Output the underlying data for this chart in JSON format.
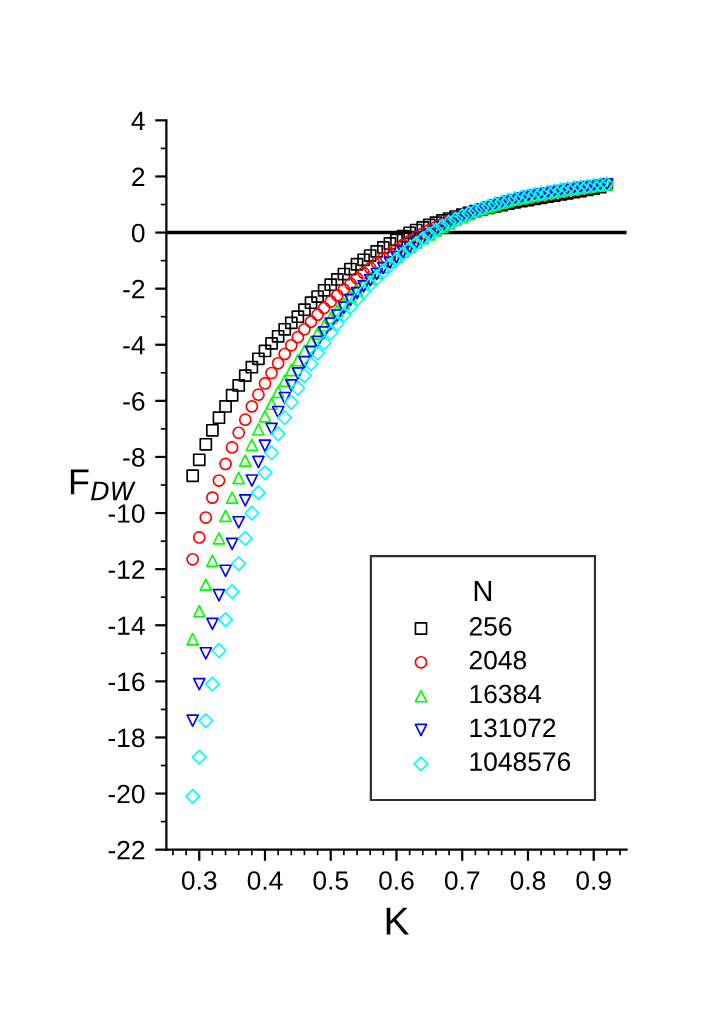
{
  "chart_data": {
    "type": "scatter",
    "xlabel": "K",
    "ylabel": "F$_{DW}$",
    "legend_title": "N",
    "legend": "bottom right",
    "grid": false,
    "x": [
      0.29,
      0.3,
      0.31,
      0.32,
      0.33,
      0.34,
      0.35,
      0.36,
      0.37,
      0.38,
      0.39,
      0.4,
      0.41,
      0.42,
      0.43,
      0.44,
      0.45,
      0.46,
      0.47,
      0.48,
      0.49,
      0.5,
      0.51,
      0.52,
      0.53,
      0.54,
      0.55,
      0.56,
      0.57,
      0.58,
      0.59,
      0.6,
      0.61,
      0.62,
      0.63,
      0.64,
      0.65,
      0.66,
      0.67,
      0.68,
      0.69,
      0.7,
      0.71,
      0.72,
      0.73,
      0.74,
      0.75,
      0.76,
      0.77,
      0.78,
      0.79,
      0.8,
      0.81,
      0.82,
      0.83,
      0.84,
      0.85,
      0.86,
      0.87,
      0.88,
      0.89,
      0.9,
      0.91,
      0.92
    ],
    "series": [
      {
        "name": "256",
        "color": "#000000",
        "marker": "square",
        "values": [
          -8.67,
          -8.1,
          -7.55,
          -7.05,
          -6.6,
          -6.2,
          -5.8,
          -5.45,
          -5.1,
          -4.8,
          -4.5,
          -4.22,
          -3.95,
          -3.7,
          -3.45,
          -3.22,
          -3.0,
          -2.75,
          -2.5,
          -2.28,
          -2.06,
          -1.86,
          -1.67,
          -1.48,
          -1.3,
          -1.13,
          -0.97,
          -0.82,
          -0.67,
          -0.53,
          -0.39,
          -0.26,
          -0.13,
          -0.01,
          0.09,
          0.18,
          0.27,
          0.35,
          0.43,
          0.5,
          0.57,
          0.64,
          0.7,
          0.76,
          0.82,
          0.88,
          0.93,
          0.98,
          1.03,
          1.08,
          1.12,
          1.16,
          1.2,
          1.24,
          1.28,
          1.32,
          1.36,
          1.4,
          1.44,
          1.48,
          1.52,
          1.57,
          1.62,
          1.72
        ]
      },
      {
        "name": "2048",
        "color": "#ff0000",
        "marker": "circle",
        "values": [
          -11.65,
          -10.87,
          -10.16,
          -9.45,
          -8.84,
          -8.25,
          -7.66,
          -7.14,
          -6.67,
          -6.2,
          -5.78,
          -5.38,
          -5.01,
          -4.66,
          -4.33,
          -4.02,
          -3.73,
          -3.45,
          -3.18,
          -2.93,
          -2.69,
          -2.46,
          -2.24,
          -2.03,
          -1.83,
          -1.63,
          -1.44,
          -1.26,
          -1.08,
          -0.91,
          -0.75,
          -0.59,
          -0.44,
          -0.3,
          -0.16,
          -0.03,
          0.09,
          0.2,
          0.31,
          0.41,
          0.51,
          0.6,
          0.68,
          0.76,
          0.84,
          0.91,
          0.97,
          1.03,
          1.09,
          1.14,
          1.19,
          1.24,
          1.29,
          1.33,
          1.37,
          1.41,
          1.45,
          1.49,
          1.53,
          1.56,
          1.6,
          1.64,
          1.68,
          1.72
        ]
      },
      {
        "name": "16384",
        "color": "#00ff00",
        "marker": "triangle",
        "values": [
          -14.5,
          -13.5,
          -12.55,
          -11.7,
          -10.9,
          -10.1,
          -9.45,
          -8.75,
          -8.13,
          -7.57,
          -7.02,
          -6.55,
          -6.1,
          -5.68,
          -5.28,
          -4.9,
          -4.55,
          -4.22,
          -3.9,
          -3.6,
          -3.31,
          -3.04,
          -2.78,
          -2.53,
          -2.29,
          -2.06,
          -1.84,
          -1.63,
          -1.43,
          -1.23,
          -1.04,
          -0.86,
          -0.68,
          -0.51,
          -0.35,
          -0.2,
          -0.06,
          0.08,
          0.21,
          0.33,
          0.45,
          0.56,
          0.66,
          0.75,
          0.84,
          0.92,
          0.99,
          1.06,
          1.12,
          1.18,
          1.23,
          1.28,
          1.33,
          1.37,
          1.41,
          1.45,
          1.49,
          1.53,
          1.56,
          1.6,
          1.63,
          1.66,
          1.69,
          1.72
        ]
      },
      {
        "name": "131072",
        "color": "#0000ff",
        "marker": "triangle_down",
        "values": [
          -17.4,
          -16.1,
          -15.0,
          -13.95,
          -12.93,
          -12.06,
          -11.1,
          -10.33,
          -9.55,
          -8.84,
          -8.18,
          -7.6,
          -7.0,
          -6.4,
          -5.9,
          -5.45,
          -5.02,
          -4.62,
          -4.25,
          -3.9,
          -3.56,
          -3.25,
          -2.96,
          -2.68,
          -2.41,
          -2.16,
          -1.92,
          -1.7,
          -1.48,
          -1.27,
          -1.07,
          -0.88,
          -0.7,
          -0.53,
          -0.37,
          -0.22,
          -0.08,
          0.06,
          0.19,
          0.31,
          0.43,
          0.54,
          0.64,
          0.73,
          0.82,
          0.9,
          0.97,
          1.04,
          1.1,
          1.16,
          1.22,
          1.27,
          1.32,
          1.36,
          1.4,
          1.44,
          1.48,
          1.52,
          1.55,
          1.59,
          1.62,
          1.65,
          1.68,
          1.72
        ]
      },
      {
        "name": "1048576",
        "color": "#00ffff",
        "marker": "diamond",
        "values": [
          -20.1,
          -18.7,
          -17.4,
          -16.1,
          -14.9,
          -13.8,
          -12.8,
          -11.8,
          -10.9,
          -10.0,
          -9.27,
          -8.56,
          -7.85,
          -7.18,
          -6.6,
          -6.05,
          -5.55,
          -5.1,
          -4.68,
          -4.3,
          -3.93,
          -3.58,
          -3.25,
          -2.94,
          -2.65,
          -2.37,
          -2.11,
          -1.86,
          -1.62,
          -1.39,
          -1.17,
          -0.96,
          -0.76,
          -0.57,
          -0.39,
          -0.22,
          -0.06,
          0.09,
          0.23,
          0.36,
          0.48,
          0.59,
          0.69,
          0.78,
          0.87,
          0.95,
          1.02,
          1.09,
          1.15,
          1.21,
          1.26,
          1.31,
          1.36,
          1.4,
          1.44,
          1.48,
          1.52,
          1.56,
          1.59,
          1.62,
          1.65,
          1.68,
          1.71,
          1.73
        ]
      }
    ],
    "xlim": [
      0.25,
      0.95
    ],
    "xticks": [
      0.3,
      0.4,
      0.5,
      0.6,
      0.7,
      0.8,
      0.9
    ],
    "ylim": [
      -22,
      4
    ],
    "yticks": [
      -22,
      -20,
      -18,
      -16,
      -14,
      -12,
      -10,
      -8,
      -6,
      -4,
      -2,
      0,
      2,
      4
    ],
    "ref_lines": [
      {
        "axis": "y",
        "value": 0,
        "color": "#000000",
        "line_style": "solid"
      }
    ]
  }
}
